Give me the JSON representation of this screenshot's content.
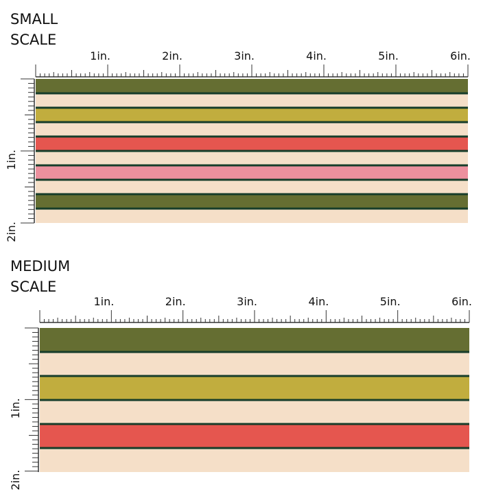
{
  "panels": [
    {
      "title": [
        "SMALL",
        "SCALE"
      ],
      "x_labels": [
        "1in.",
        "2in.",
        "3in.",
        "4in.",
        "5in.",
        "6in."
      ],
      "y_labels": [
        "1in.",
        "2in."
      ],
      "stripes": [
        "#656e32",
        "#f5dfc8",
        "#c1ad3e",
        "#f5dfc8",
        "#e5564f",
        "#f5dfc8",
        "#ec909e",
        "#f5dfc8",
        "#656e32",
        "#f5dfc8"
      ]
    },
    {
      "title": [
        "MEDIUM",
        "SCALE"
      ],
      "x_labels": [
        "1in.",
        "2in.",
        "3in.",
        "4in.",
        "5in.",
        "6in."
      ],
      "y_labels": [
        "1in.",
        "2in."
      ],
      "stripes": [
        "#656e32",
        "#f5dfc8",
        "#c1ad3e",
        "#f5dfc8",
        "#e5564f",
        "#f5dfc8"
      ]
    }
  ]
}
